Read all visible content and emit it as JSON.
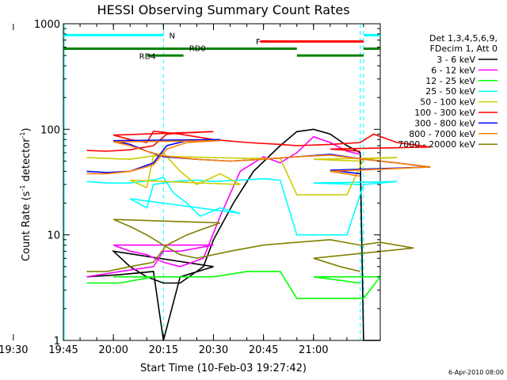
{
  "chart_data": {
    "type": "line",
    "title": "HESSI Observing Summary Count Rates",
    "xlabel": "Start Time (10-Feb-03 19:27:42)",
    "ylabel": "Count Rate (s",
    "ylabel_sup1": "-1",
    "ylabel_mid": " detector",
    "ylabel_sup2": "-1",
    "ylabel_end": ")",
    "y_scale": "log",
    "ylim": [
      1,
      1000
    ],
    "xlim_minutes": [
      19.45,
      21.2
    ],
    "x_ticks": [
      "19:30",
      "19:45",
      "20:00",
      "20:15",
      "20:30",
      "20:45",
      "21:00"
    ],
    "y_ticks": [
      "1",
      "10",
      "100",
      "1000"
    ],
    "legend_header": [
      "Det 1,3,4,5,6,9,",
      "FDecim 1, Att 0"
    ],
    "timestamp": "6-Apr-2010 08:00",
    "series": [
      {
        "name": "3 - 6 keV",
        "color": "#000000",
        "points": [
          [
            19.52,
            4.0
          ],
          [
            19.62,
            4.2
          ],
          [
            19.72,
            4.5
          ],
          [
            19.75,
            1.0
          ],
          [
            19.8,
            4.0
          ],
          [
            19.9,
            5.0
          ],
          [
            20.0,
            7.0
          ],
          [
            20.05,
            5.0
          ],
          [
            20.1,
            4.0
          ],
          [
            20.15,
            3.5
          ],
          [
            20.2,
            3.5
          ],
          [
            20.27,
            5.0
          ],
          [
            20.3,
            9.0
          ],
          [
            20.36,
            20
          ],
          [
            20.42,
            40
          ],
          [
            20.5,
            70
          ],
          [
            20.55,
            95
          ],
          [
            20.6,
            100
          ],
          [
            20.65,
            90
          ],
          [
            20.7,
            70
          ],
          [
            20.74,
            60
          ],
          [
            20.75,
            1.0
          ],
          [
            20.8,
            1.0
          ]
        ]
      },
      {
        "name": "6 - 12 keV",
        "color": "#ff00ff",
        "points": [
          [
            19.52,
            4.0
          ],
          [
            19.62,
            4.5
          ],
          [
            19.72,
            5.0
          ],
          [
            19.75,
            7.0
          ],
          [
            19.8,
            7.0
          ],
          [
            19.9,
            8.0
          ],
          [
            20.0,
            8.0
          ],
          [
            20.05,
            7.0
          ],
          [
            20.1,
            6.5
          ],
          [
            20.15,
            5.5
          ],
          [
            20.2,
            5.0
          ],
          [
            20.27,
            6.0
          ],
          [
            20.32,
            15
          ],
          [
            20.38,
            40
          ],
          [
            20.45,
            55
          ],
          [
            20.5,
            48
          ],
          [
            20.55,
            60
          ],
          [
            20.6,
            85
          ],
          [
            20.65,
            75
          ],
          [
            20.7,
            62
          ],
          [
            20.74,
            58
          ],
          [
            20.75,
            null
          ]
        ]
      },
      {
        "name": "12 - 25 keV",
        "color": "#00ff00",
        "points": [
          [
            19.52,
            3.5
          ],
          [
            19.62,
            3.5
          ],
          [
            19.72,
            4.0
          ],
          [
            19.75,
            4.0
          ],
          [
            19.8,
            4.0
          ],
          [
            19.9,
            4.0
          ],
          [
            20.0,
            4.0
          ],
          [
            20.05,
            4.0
          ],
          [
            20.1,
            4.0
          ],
          [
            20.2,
            4.0
          ],
          [
            20.3,
            4.0
          ],
          [
            20.4,
            4.5
          ],
          [
            20.5,
            4.5
          ],
          [
            20.55,
            2.5
          ],
          [
            20.65,
            2.5
          ],
          [
            20.75,
            2.5
          ],
          [
            20.8,
            4.0
          ],
          [
            21.0,
            4.0
          ],
          [
            21.14,
            3.5
          ]
        ]
      },
      {
        "name": "25 - 50 keV",
        "color": "#00ffff",
        "points": [
          [
            19.52,
            32
          ],
          [
            19.58,
            31
          ],
          [
            19.65,
            31
          ],
          [
            19.72,
            33
          ],
          [
            19.75,
            35
          ],
          [
            19.78,
            25
          ],
          [
            19.82,
            20
          ],
          [
            19.86,
            15
          ],
          [
            19.92,
            18
          ],
          [
            19.98,
            16
          ],
          [
            20.05,
            22
          ],
          [
            20.1,
            18
          ],
          [
            20.12,
            30
          ],
          [
            20.18,
            32
          ],
          [
            20.25,
            33
          ],
          [
            20.3,
            32
          ],
          [
            20.38,
            33
          ],
          [
            20.45,
            34
          ],
          [
            20.5,
            33
          ],
          [
            20.55,
            10
          ],
          [
            20.7,
            10
          ],
          [
            20.75,
            30
          ],
          [
            20.85,
            32
          ],
          [
            21.0,
            31
          ],
          [
            21.14,
            30
          ]
        ]
      },
      {
        "name": "50 - 100 keV",
        "color": "#cccc00",
        "points": [
          [
            19.52,
            54
          ],
          [
            19.58,
            53
          ],
          [
            19.65,
            52
          ],
          [
            19.72,
            56
          ],
          [
            19.75,
            60
          ],
          [
            19.8,
            40
          ],
          [
            19.85,
            30
          ],
          [
            19.92,
            38
          ],
          [
            19.98,
            30
          ],
          [
            20.05,
            33
          ],
          [
            20.1,
            28
          ],
          [
            20.12,
            56
          ],
          [
            20.2,
            55
          ],
          [
            20.3,
            54
          ],
          [
            20.4,
            53
          ],
          [
            20.5,
            53
          ],
          [
            20.55,
            24
          ],
          [
            20.7,
            24
          ],
          [
            20.75,
            52
          ],
          [
            20.85,
            54
          ],
          [
            21.0,
            52
          ],
          [
            21.14,
            50
          ]
        ]
      },
      {
        "name": "100 - 300 keV",
        "color": "#ff0000",
        "points": [
          [
            19.52,
            63
          ],
          [
            19.58,
            62
          ],
          [
            19.65,
            64
          ],
          [
            19.72,
            70
          ],
          [
            19.76,
            90
          ],
          [
            19.8,
            92
          ],
          [
            19.9,
            95
          ],
          [
            20.0,
            88
          ],
          [
            20.05,
            80
          ],
          [
            20.1,
            75
          ],
          [
            20.12,
            96
          ],
          [
            20.2,
            90
          ],
          [
            20.3,
            80
          ],
          [
            20.4,
            75
          ],
          [
            20.5,
            72
          ],
          [
            20.55,
            70
          ],
          [
            20.65,
            72
          ],
          [
            20.74,
            75
          ],
          [
            20.78,
            90
          ],
          [
            20.85,
            75
          ],
          [
            20.95,
            68
          ],
          [
            21.05,
            65
          ],
          [
            21.14,
            62
          ]
        ]
      },
      {
        "name": "300 - 800 keV",
        "color": "#0000ff",
        "points": [
          [
            19.52,
            40
          ],
          [
            19.58,
            39
          ],
          [
            19.65,
            40
          ],
          [
            19.72,
            48
          ],
          [
            19.76,
            70
          ],
          [
            19.82,
            78
          ],
          [
            19.92,
            80
          ],
          [
            20.0,
            78
          ],
          [
            20.05,
            72
          ],
          [
            20.1,
            62
          ],
          [
            20.15,
            55
          ],
          [
            20.25,
            52
          ],
          [
            20.35,
            50
          ],
          [
            20.45,
            52
          ],
          [
            20.55,
            55
          ],
          [
            20.65,
            58
          ],
          [
            20.75,
            52
          ],
          [
            20.85,
            48
          ],
          [
            20.95,
            44
          ],
          [
            21.05,
            41
          ],
          [
            21.14,
            38
          ]
        ]
      },
      {
        "name": "800 - 7000 keV",
        "color": "#ff8000",
        "points": [
          [
            19.52,
            38
          ],
          [
            19.58,
            38
          ],
          [
            19.65,
            40
          ],
          [
            19.72,
            46
          ],
          [
            19.76,
            65
          ],
          [
            19.82,
            75
          ],
          [
            19.92,
            78
          ],
          [
            20.0,
            76
          ],
          [
            20.05,
            70
          ],
          [
            20.1,
            62
          ],
          [
            20.15,
            56
          ],
          [
            20.25,
            52
          ],
          [
            20.35,
            50
          ],
          [
            20.45,
            52
          ],
          [
            20.55,
            55
          ],
          [
            20.65,
            57
          ],
          [
            20.75,
            52
          ],
          [
            20.85,
            48
          ],
          [
            20.95,
            44
          ],
          [
            21.05,
            40
          ],
          [
            21.14,
            36
          ]
        ]
      },
      {
        "name": "7000 - 20000 keV",
        "color": "#808000",
        "points": [
          [
            19.52,
            4.5
          ],
          [
            19.58,
            4.5
          ],
          [
            19.65,
            5.0
          ],
          [
            19.72,
            5.5
          ],
          [
            19.76,
            8.0
          ],
          [
            19.82,
            10
          ],
          [
            19.92,
            13
          ],
          [
            20.0,
            14
          ],
          [
            20.05,
            12
          ],
          [
            20.1,
            10
          ],
          [
            20.15,
            8.0
          ],
          [
            20.2,
            6.5
          ],
          [
            20.25,
            6.0
          ],
          [
            20.35,
            7.0
          ],
          [
            20.45,
            8.0
          ],
          [
            20.55,
            8.5
          ],
          [
            20.65,
            9.0
          ],
          [
            20.74,
            8.0
          ],
          [
            20.8,
            8.5
          ],
          [
            20.9,
            7.5
          ],
          [
            21.0,
            6.0
          ],
          [
            21.08,
            5.0
          ],
          [
            21.14,
            4.5
          ]
        ]
      }
    ],
    "flags": [
      {
        "label": "N",
        "color": "#00ffff",
        "segments": [
          [
            19.45,
            19.75
          ],
          [
            20.75,
            21.2
          ]
        ],
        "level": 780
      },
      {
        "label": "F",
        "color": "#ff0000",
        "segments": [
          [
            20.44,
            20.75
          ]
        ],
        "level": 680
      },
      {
        "label": "RD0",
        "color": "#008000",
        "segments": [
          [
            19.45,
            19.81
          ],
          [
            20.1,
            20.55
          ],
          [
            20.75,
            21.2
          ]
        ],
        "level": 580
      },
      {
        "label": "RD4",
        "color": "#008000",
        "segments": [
          [
            19.81,
            20.1
          ],
          [
            20.55,
            20.75
          ]
        ],
        "level": 500
      }
    ],
    "vlines": [
      {
        "time": 19.75,
        "color": "#00ffff",
        "style": "dashed"
      },
      {
        "time": 20.75,
        "color": "#00ffff",
        "style": "dashed"
      },
      {
        "time": 21.14,
        "color": "#00ffff",
        "style": "dashed"
      }
    ]
  }
}
